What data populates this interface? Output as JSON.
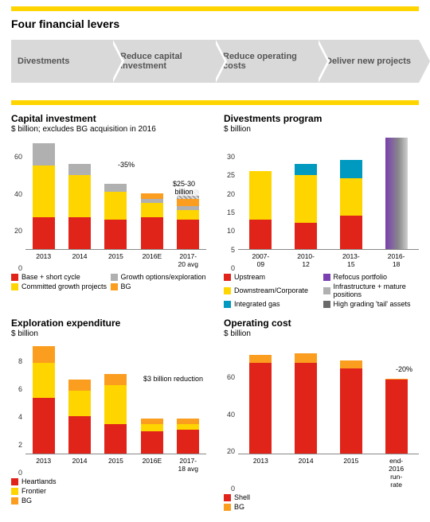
{
  "title": "Four financial levers",
  "levers": [
    "Divestments",
    "Reduce capital investment",
    "Reduce operating costs",
    "Deliver new projects"
  ],
  "colors": {
    "red": "#e0241a",
    "yellow": "#ffd500",
    "orange": "#fb9d1e",
    "grey": "#b0b0b0",
    "blue": "#0099c0",
    "purple": "#7a3fb0",
    "dgrey": "#6a6a6a",
    "hatch": "#bdbdbd"
  },
  "capex": {
    "title": "Capital investment",
    "subtitle": "$ billion; excludes BG acquisition in 2016",
    "ylim": 60,
    "yticks": [
      0,
      20,
      40,
      60
    ],
    "categories": [
      "2013",
      "2014",
      "2015",
      "2016E",
      "2017-20 avg"
    ],
    "series": [
      {
        "name": "Base + short cycle",
        "color": "red",
        "vals": [
          17,
          17,
          16,
          17,
          16
        ]
      },
      {
        "name": "Committed growth projects",
        "color": "yellow",
        "vals": [
          28,
          23,
          15,
          8,
          5
        ]
      },
      {
        "name": "Growth options/exploration",
        "color": "grey",
        "vals": [
          12,
          6,
          4,
          2,
          2
        ]
      },
      {
        "name": "BG",
        "color": "orange",
        "vals": [
          0,
          0,
          0,
          3,
          4
        ]
      }
    ],
    "hatched_last": 5,
    "annot1": "-35%",
    "annot2": "$25-30 billion",
    "legend_order": [
      [
        0,
        2
      ],
      [
        1,
        3
      ]
    ]
  },
  "divest": {
    "title": "Divestments program",
    "subtitle": "$ billion",
    "ylim": 30,
    "yticks": [
      0,
      5,
      10,
      15,
      20,
      25,
      30
    ],
    "categories": [
      "2007-09",
      "2010-12",
      "2013-15",
      "2016-18"
    ],
    "series": [
      {
        "name": "Upstream",
        "color": "red",
        "vals": [
          8,
          7,
          9,
          0
        ]
      },
      {
        "name": "Downstream/Corporate",
        "color": "yellow",
        "vals": [
          13,
          13,
          10,
          0
        ]
      },
      {
        "name": "Integrated gas",
        "color": "blue",
        "vals": [
          0,
          3,
          5,
          0
        ]
      }
    ],
    "grad_last": 30,
    "legend2": [
      {
        "name": "Refocus portfolio",
        "color": "purple"
      },
      {
        "name": "Infrastructure + mature positions",
        "color": "grey"
      },
      {
        "name": "High grading 'tail' assets",
        "color": "dgrey"
      }
    ]
  },
  "explore": {
    "title": "Exploration expenditure",
    "subtitle": "$ billion",
    "ylim": 8,
    "yticks": [
      0,
      2,
      4,
      6,
      8
    ],
    "categories": [
      "2013",
      "2014",
      "2015",
      "2016E",
      "2017-18 avg"
    ],
    "series": [
      {
        "name": "Heartlands",
        "color": "red",
        "vals": [
          4.0,
          2.7,
          2.1,
          1.6,
          1.7
        ]
      },
      {
        "name": "Frontier",
        "color": "yellow",
        "vals": [
          2.5,
          1.8,
          2.8,
          0.5,
          0.4
        ]
      },
      {
        "name": "BG",
        "color": "orange",
        "vals": [
          1.2,
          0.8,
          0.8,
          0.4,
          0.4
        ]
      }
    ],
    "annot": "$3 billion reduction"
  },
  "opcost": {
    "title": "Operating cost",
    "subtitle": "$ billion",
    "ylim": 60,
    "yticks": [
      0,
      20,
      40,
      60
    ],
    "categories": [
      "2013",
      "2014",
      "2015",
      "end-2016 run-rate"
    ],
    "series": [
      {
        "name": "Shell",
        "color": "red",
        "vals": [
          49,
          49,
          46,
          40
        ]
      },
      {
        "name": "BG",
        "color": "orange",
        "vals": [
          4,
          5,
          4,
          0.5
        ]
      }
    ],
    "annot": "-20%"
  }
}
